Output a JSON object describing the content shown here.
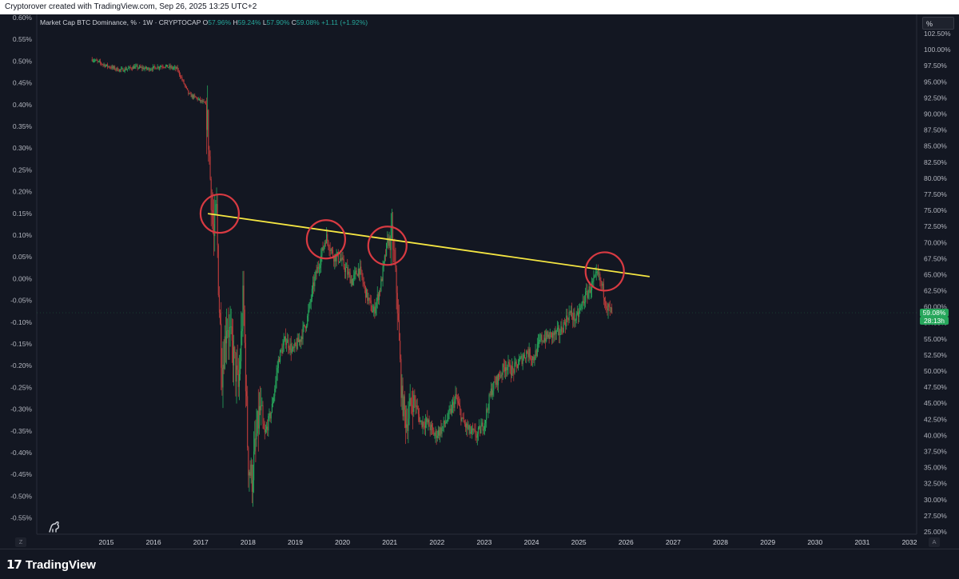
{
  "header": {
    "attribution": "Cryptorover created with TradingView.com, Sep 26, 2025 13:25 UTC+2"
  },
  "legend": {
    "symbol": "Market Cap BTC Dominance, % · 1W · CRYPTOCAP",
    "o_label": "O",
    "o_value": "57.96%",
    "h_label": "H",
    "h_value": "59.24%",
    "l_label": "L",
    "l_value": "57.90%",
    "c_label": "C",
    "c_value": "59.08%",
    "change": "+1.11 (+1.92%)"
  },
  "price_scale": {
    "unit_button": "%",
    "last_price": "59.08%",
    "countdown": "28:13h"
  },
  "corner_buttons": {
    "left": "Z",
    "right": "A"
  },
  "footer": {
    "brand": "TradingView",
    "logo_icon": "tradingview-logo-icon"
  },
  "colors": {
    "background": "#131722",
    "up": "#26a65b",
    "down": "#b83a3a",
    "trendline": "#f5e642",
    "circle": "#d83a42",
    "price_tag": "#26a65b"
  },
  "chart_data": {
    "type": "candlestick",
    "title": "Market Cap BTC Dominance, %",
    "interval": "1W",
    "source": "CRYPTOCAP",
    "x_ticks": [
      "2015",
      "2016",
      "2017",
      "2018",
      "2019",
      "2020",
      "2021",
      "2022",
      "2023",
      "2024",
      "2025",
      "2026",
      "2027",
      "2028",
      "2029",
      "2030",
      "2031",
      "2032"
    ],
    "y_right_ticks": [
      "102.50%",
      "100.00%",
      "97.50%",
      "95.00%",
      "92.50%",
      "90.00%",
      "87.50%",
      "85.00%",
      "82.50%",
      "80.00%",
      "77.50%",
      "75.00%",
      "72.50%",
      "70.00%",
      "67.50%",
      "65.00%",
      "62.50%",
      "60.00%",
      "57.50%",
      "55.00%",
      "52.50%",
      "50.00%",
      "47.50%",
      "45.00%",
      "42.50%",
      "40.00%",
      "37.50%",
      "35.00%",
      "32.50%",
      "30.00%",
      "27.50%",
      "25.00%"
    ],
    "y_left_ticks": [
      "0.60%",
      "0.55%",
      "0.50%",
      "0.45%",
      "0.40%",
      "0.35%",
      "0.30%",
      "0.25%",
      "0.20%",
      "0.15%",
      "0.10%",
      "0.05%",
      "0.00%",
      "-0.05%",
      "-0.10%",
      "-0.15%",
      "-0.20%",
      "-0.25%",
      "-0.30%",
      "-0.35%",
      "-0.40%",
      "-0.45%",
      "-0.50%",
      "-0.55%"
    ],
    "ylim": [
      24.5,
      103.5
    ],
    "series": [
      {
        "name": "Market Cap BTC Dominance, %",
        "points": [
          [
            2014.7,
            98.5
          ],
          [
            2015.0,
            97.5
          ],
          [
            2015.3,
            96.8
          ],
          [
            2015.6,
            97.3
          ],
          [
            2015.9,
            97.0
          ],
          [
            2016.2,
            97.5
          ],
          [
            2016.5,
            97.0
          ],
          [
            2016.75,
            93.0
          ],
          [
            2016.9,
            92.5
          ],
          [
            2017.1,
            91.5
          ],
          [
            2017.15,
            88.0
          ],
          [
            2017.2,
            80.0
          ],
          [
            2017.28,
            70.0
          ],
          [
            2017.33,
            76.0
          ],
          [
            2017.38,
            62.0
          ],
          [
            2017.45,
            50.0
          ],
          [
            2017.55,
            58.0
          ],
          [
            2017.7,
            52.0
          ],
          [
            2017.8,
            47.0
          ],
          [
            2017.9,
            62.0
          ],
          [
            2018.0,
            36.0
          ],
          [
            2018.08,
            33.0
          ],
          [
            2018.15,
            38.0
          ],
          [
            2018.25,
            44.0
          ],
          [
            2018.35,
            40.0
          ],
          [
            2018.5,
            44.0
          ],
          [
            2018.65,
            52.0
          ],
          [
            2018.8,
            55.0
          ],
          [
            2018.95,
            53.0
          ],
          [
            2019.1,
            55.0
          ],
          [
            2019.25,
            58.0
          ],
          [
            2019.4,
            64.0
          ],
          [
            2019.55,
            68.0
          ],
          [
            2019.65,
            71.0
          ],
          [
            2019.8,
            68.0
          ],
          [
            2019.95,
            67.5
          ],
          [
            2020.05,
            66.0
          ],
          [
            2020.2,
            64.0
          ],
          [
            2020.35,
            66.0
          ],
          [
            2020.5,
            62.0
          ],
          [
            2020.65,
            59.0
          ],
          [
            2020.8,
            63.0
          ],
          [
            2020.95,
            70.0
          ],
          [
            2021.05,
            71.0
          ],
          [
            2021.15,
            62.0
          ],
          [
            2021.25,
            46.0
          ],
          [
            2021.35,
            42.0
          ],
          [
            2021.5,
            46.0
          ],
          [
            2021.65,
            42.0
          ],
          [
            2021.8,
            42.0
          ],
          [
            2021.95,
            40.0
          ],
          [
            2022.1,
            41.0
          ],
          [
            2022.25,
            43.0
          ],
          [
            2022.4,
            46.0
          ],
          [
            2022.55,
            42.0
          ],
          [
            2022.7,
            40.5
          ],
          [
            2022.85,
            40.0
          ],
          [
            2023.0,
            42.0
          ],
          [
            2023.15,
            47.0
          ],
          [
            2023.3,
            49.0
          ],
          [
            2023.45,
            51.0
          ],
          [
            2023.6,
            50.0
          ],
          [
            2023.75,
            51.5
          ],
          [
            2023.9,
            53.0
          ],
          [
            2024.05,
            52.0
          ],
          [
            2024.2,
            55.0
          ],
          [
            2024.4,
            55.5
          ],
          [
            2024.6,
            56.0
          ],
          [
            2024.8,
            59.0
          ],
          [
            2024.95,
            58.0
          ],
          [
            2025.1,
            61.0
          ],
          [
            2025.25,
            63.0
          ],
          [
            2025.4,
            65.0
          ],
          [
            2025.5,
            63.0
          ],
          [
            2025.6,
            60.0
          ],
          [
            2025.7,
            59.08
          ]
        ]
      }
    ],
    "trendline": [
      [
        2017.15,
        74.5
      ],
      [
        2026.5,
        64.7
      ]
    ],
    "circled_points": [
      [
        2017.4,
        74.5
      ],
      [
        2019.65,
        70.5
      ],
      [
        2020.95,
        69.5
      ],
      [
        2025.55,
        65.5
      ]
    ]
  }
}
